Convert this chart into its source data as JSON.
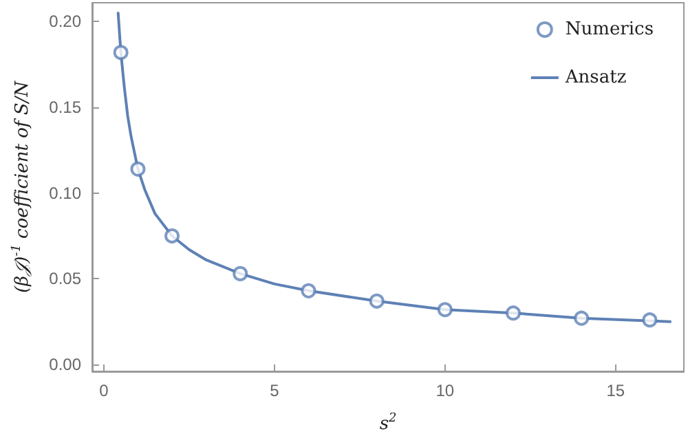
{
  "chart_data": {
    "type": "scatter",
    "xlabel": "s$^{2}$",
    "ylabel": "(β𝒥)$^{-1}$ coefficient of S/N",
    "xlim": [
      -0.34,
      17.0
    ],
    "ylim": [
      -0.004,
      0.211
    ],
    "xticks": [
      0,
      5,
      10,
      15
    ],
    "yticks": [
      {
        "value": 0,
        "label": "0.00"
      },
      {
        "value": 0.05,
        "label": "0.05"
      },
      {
        "value": 0.1,
        "label": "0.10"
      },
      {
        "value": 0.15,
        "label": "0.15"
      },
      {
        "value": 0.2,
        "label": "0.20"
      }
    ],
    "legend": "top right",
    "grid": false,
    "series": [
      {
        "name": "Numerics",
        "marker": "circle",
        "color": "#5e81b5",
        "x": [
          0.5,
          1,
          2,
          4,
          6,
          8,
          10,
          12,
          14,
          16
        ],
        "values": [
          0.182,
          0.114,
          0.075,
          0.053,
          0.043,
          0.037,
          0.032,
          0.03,
          0.027,
          0.026
        ]
      },
      {
        "name": "Ansatz",
        "type": "line",
        "marker": "none",
        "line_style": "solid",
        "color": "#5e81b5",
        "x": [
          0.42,
          0.5,
          0.6,
          0.7,
          0.8,
          1,
          1.2,
          1.5,
          2,
          2.5,
          3,
          4,
          5,
          6,
          8,
          10,
          12,
          14,
          16.6
        ],
        "values": [
          0.205,
          0.182,
          0.162,
          0.145,
          0.133,
          0.114,
          0.102,
          0.088,
          0.075,
          0.067,
          0.061,
          0.053,
          0.047,
          0.043,
          0.037,
          0.032,
          0.03,
          0.027,
          0.025
        ]
      }
    ]
  }
}
